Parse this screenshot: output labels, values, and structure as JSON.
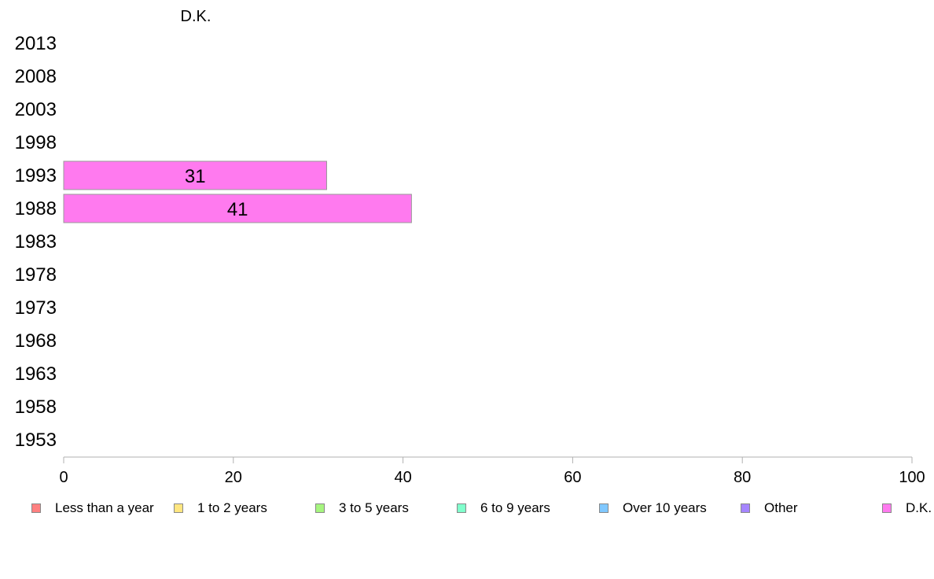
{
  "chart_data": {
    "type": "bar",
    "orientation": "horizontal",
    "stacked": true,
    "title": "D.K.",
    "categories": [
      "2013",
      "2008",
      "2003",
      "1998",
      "1993",
      "1988",
      "1983",
      "1978",
      "1973",
      "1968",
      "1963",
      "1958",
      "1953"
    ],
    "series": [
      {
        "name": "Less than a year",
        "color": "#ff8080",
        "values": [
          null,
          null,
          null,
          null,
          null,
          null,
          null,
          null,
          null,
          null,
          null,
          null,
          null
        ]
      },
      {
        "name": "1 to 2 years",
        "color": "#ffe680",
        "values": [
          null,
          null,
          null,
          null,
          null,
          null,
          null,
          null,
          null,
          null,
          null,
          null,
          null
        ]
      },
      {
        "name": "3 to 5 years",
        "color": "#a6f57f",
        "values": [
          null,
          null,
          null,
          null,
          null,
          null,
          null,
          null,
          null,
          null,
          null,
          null,
          null
        ]
      },
      {
        "name": "6 to 9 years",
        "color": "#80ffcc",
        "values": [
          null,
          null,
          null,
          null,
          null,
          null,
          null,
          null,
          null,
          null,
          null,
          null,
          null
        ]
      },
      {
        "name": "Over 10 years",
        "color": "#80c8ff",
        "values": [
          null,
          null,
          null,
          null,
          null,
          null,
          null,
          null,
          null,
          null,
          null,
          null,
          null
        ]
      },
      {
        "name": "Other",
        "color": "#a585ff",
        "values": [
          null,
          null,
          null,
          null,
          null,
          null,
          null,
          null,
          null,
          null,
          null,
          null,
          null
        ]
      },
      {
        "name": "D.K.",
        "color": "#ff7aef",
        "values": [
          null,
          null,
          null,
          null,
          31,
          41,
          null,
          null,
          null,
          null,
          null,
          null,
          null
        ]
      }
    ],
    "xlim": [
      0,
      100
    ],
    "xticks": [
      0,
      20,
      40,
      60,
      80,
      100
    ],
    "grid": false,
    "legend_position": "bottom"
  }
}
